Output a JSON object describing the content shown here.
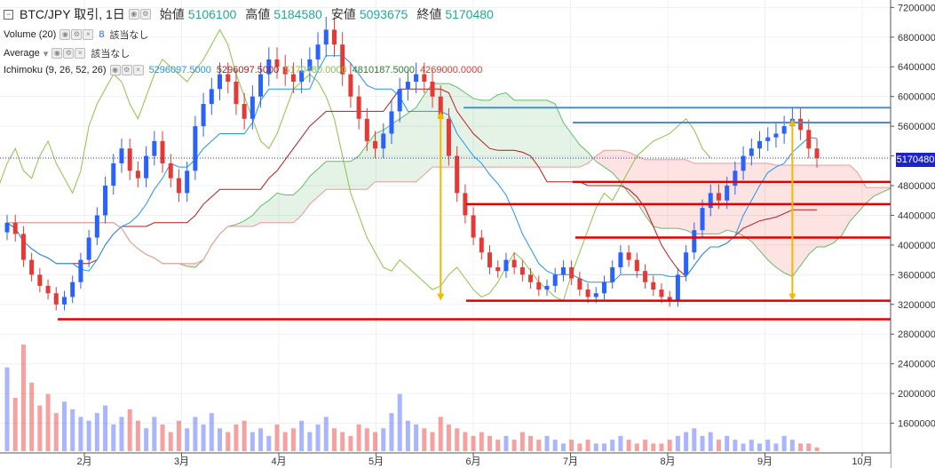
{
  "header": {
    "collapse_icon": "minus-box-icon",
    "title": "BTC/JPY 取引, 1日",
    "open_label": "始値",
    "open_value": "5106100",
    "high_label": "高値",
    "high_value": "5184580",
    "low_label": "安値",
    "low_value": "5093675",
    "close_label": "終値",
    "close_value": "5170480"
  },
  "indicators": {
    "volume": {
      "label": "Volume (20)",
      "value": "8",
      "extra": "該当なし"
    },
    "average": {
      "label": "Average",
      "extra": "該当なし"
    },
    "ichimoku": {
      "label": "Ichimoku (9, 26, 52, 26)",
      "v1": "5296097.5000",
      "v2": "5296097.5000",
      "v3": "5170480.0000",
      "v4": "4810187.5000",
      "v5": "4269000.0000"
    }
  },
  "price_tag": "5170480",
  "colors": {
    "up": "#2962ff",
    "down": "#e53935",
    "tenkan": "#2196f3",
    "kijun": "#b71c1c",
    "chikou": "#8bc34a",
    "span_a": "#66bb6a",
    "span_b": "#ef9a9a",
    "cloud_green": "rgba(76,175,80,0.15)",
    "cloud_red": "rgba(244,67,54,0.15)",
    "support_line": "#e00000",
    "resistance_line": "#4a90c8",
    "arrow": "#f5b800"
  },
  "chart_data": {
    "type": "candlestick",
    "y_axis_labels": [
      "7200000",
      "6800000",
      "6400000",
      "6000000",
      "5600000",
      "5200000",
      "4800000",
      "4400000",
      "4000000",
      "3600000",
      "3200000",
      "2800000",
      "2400000",
      "2000000",
      "1600000"
    ],
    "x_axis_labels": [
      "2月",
      "3月",
      "4月",
      "5月",
      "6月",
      "7月",
      "8月",
      "9月",
      "10月"
    ],
    "ylim": [
      1200000,
      7300000
    ],
    "grid": true,
    "close_price": 5170480,
    "close_series": [
      4300000,
      4150000,
      3800000,
      3600000,
      3450000,
      3350000,
      3200000,
      3300000,
      3500000,
      3800000,
      4100000,
      4400000,
      4800000,
      5100000,
      5300000,
      5000000,
      4900000,
      5200000,
      5400000,
      5100000,
      4900000,
      4700000,
      5000000,
      5600000,
      5900000,
      6100000,
      6300000,
      6200000,
      5900000,
      5700000,
      6000000,
      6300000,
      6500000,
      6400000,
      6300000,
      6200000,
      6350000,
      6500000,
      6700000,
      6900000,
      6700000,
      6300000,
      6000000,
      5700000,
      5400000,
      5300000,
      5500000,
      5800000,
      6100000,
      6200000,
      6300000,
      6200000,
      6000000,
      5700000,
      5200000,
      4700000,
      4400000,
      4100000,
      3900000,
      3700000,
      3650000,
      3800000,
      3700000,
      3600000,
      3500000,
      3400000,
      3450000,
      3600000,
      3700000,
      3550000,
      3400000,
      3300000,
      3350000,
      3500000,
      3700000,
      3900000,
      3800000,
      3650000,
      3500000,
      3400000,
      3300000,
      3250000,
      3600000,
      3900000,
      4200000,
      4500000,
      4700000,
      4600000,
      4800000,
      5000000,
      5200000,
      5300000,
      5400000,
      5450000,
      5500000,
      5600000,
      5700000,
      5550000,
      5300000,
      5170480
    ],
    "volume_series": [
      2.2,
      1.4,
      2.8,
      1.8,
      1.2,
      1.5,
      1.0,
      1.3,
      1.1,
      0.9,
      0.8,
      1.0,
      1.2,
      0.7,
      0.9,
      1.1,
      0.8,
      0.6,
      0.9,
      0.7,
      0.5,
      0.8,
      0.6,
      0.9,
      0.7,
      1.0,
      0.6,
      0.5,
      0.7,
      0.8,
      0.5,
      0.6,
      0.4,
      0.7,
      0.5,
      0.6,
      0.8,
      0.5,
      0.7,
      0.9,
      0.6,
      0.5,
      0.4,
      0.7,
      0.6,
      0.5,
      0.6,
      1.0,
      1.5,
      0.8,
      0.7,
      0.6,
      0.5,
      0.9,
      0.7,
      0.6,
      0.5,
      0.4,
      0.5,
      0.4,
      0.3,
      0.4,
      0.3,
      0.5,
      0.4,
      0.3,
      0.4,
      0.3,
      0.2,
      0.3,
      0.2,
      0.3,
      0.2,
      0.2,
      0.3,
      0.4,
      0.3,
      0.2,
      0.3,
      0.2,
      0.2,
      0.3,
      0.4,
      0.5,
      0.6,
      0.4,
      0.5,
      0.3,
      0.4,
      0.3,
      0.2,
      0.3,
      0.2,
      0.3,
      0.2,
      0.4,
      0.3,
      0.2,
      0.2,
      0.1
    ],
    "support_levels": [
      4850000,
      4550000,
      4100000,
      3250000,
      3000000
    ],
    "resistance_levels": [
      5850000,
      5650000
    ],
    "measure_arrows": [
      {
        "x_index": 53,
        "from": 5800000,
        "to": 3250000
      },
      {
        "x_index": 96,
        "from": 5700000,
        "to": 3250000
      }
    ]
  }
}
